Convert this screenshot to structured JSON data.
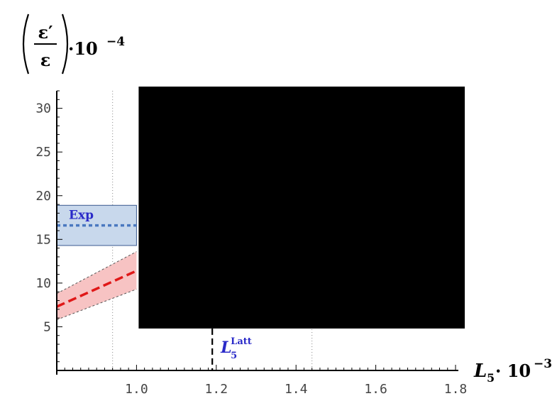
{
  "chart_data": {
    "type": "line",
    "ylabel": {
      "numerator": "ε′",
      "denominator": "ε",
      "factor_base": "·10",
      "factor_exp": "−4"
    },
    "xlabel": {
      "base": "L",
      "sub": "5",
      "factor_base": "· 10",
      "factor_exp": "−3"
    },
    "xlim": [
      0.8,
      1.8
    ],
    "ylim": [
      0,
      32
    ],
    "x_tick_labels": [
      "1.0",
      "1.2",
      "1.4",
      "1.6",
      "1.8"
    ],
    "x_ticks": [
      1.0,
      1.2,
      1.4,
      1.6,
      1.8
    ],
    "y_tick_labels": [
      "5",
      "10",
      "15",
      "20",
      "25",
      "30"
    ],
    "y_ticks": [
      5,
      10,
      15,
      20,
      25,
      30
    ],
    "exp_band": {
      "label": "Exp",
      "center": 16.6,
      "low": 14.3,
      "high": 18.9,
      "x_range": [
        0.8,
        1.0
      ]
    },
    "prediction": {
      "x": [
        0.8,
        1.0
      ],
      "central": [
        7.3,
        11.4
      ],
      "lower": [
        5.8,
        9.3
      ],
      "upper": [
        8.8,
        13.6
      ]
    },
    "vertical_lines": [
      {
        "x": 0.94,
        "style": "dotted"
      },
      {
        "x": 1.19,
        "style": "dashed",
        "label_base": "L",
        "label_sub": "5",
        "label_sup": "Latt",
        "y_top": 4.8
      },
      {
        "x": 1.44,
        "style": "dotted"
      }
    ],
    "redacted_region": {
      "x_range": [
        1.0,
        1.8
      ],
      "y_range": [
        4.8,
        32
      ]
    },
    "colors": {
      "band_fill": "#c8d8ec",
      "band_edge": "#3a5a90",
      "exp_line": "#4a78c0",
      "pred_fill": "#f7c3c3",
      "pred_line": "#e01818",
      "annotation": "#2a2ac8",
      "redaction": "#000000"
    }
  }
}
